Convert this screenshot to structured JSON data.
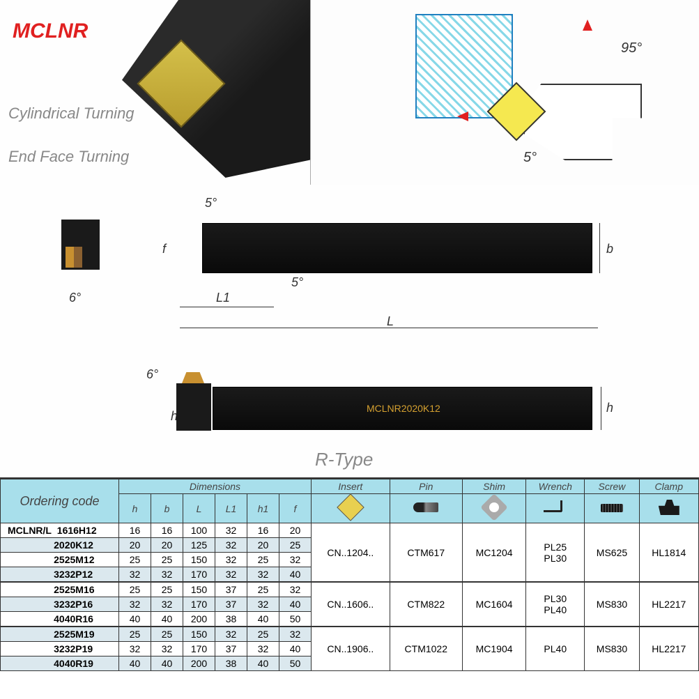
{
  "header": {
    "product_code": "MCLNR",
    "subtitle1": "Cylindrical Turning",
    "subtitle2": "End  Face Turning",
    "angle_top": "95°",
    "angle_bottom": "5°"
  },
  "diagram": {
    "angle5a": "5°",
    "angle5b": "5°",
    "angle6a": "6°",
    "angle6b": "6°",
    "label_f": "f",
    "label_L1": "L1",
    "label_L": "L",
    "label_b": "b",
    "label_h1": "h1",
    "label_h": "h",
    "bar_text": "MCLNR2020K12",
    "r_type": "R-Type"
  },
  "table": {
    "ordering_header": "Ordering code",
    "dimensions_header": "Dimensions",
    "dim_cols": [
      "h",
      "b",
      "L",
      "L1",
      "h1",
      "f"
    ],
    "part_headers": [
      "Insert",
      "Pin",
      "Shim",
      "Wrench",
      "Screw",
      "Clamp"
    ],
    "code_prefix": "MCLNR/L",
    "rows": [
      {
        "code": "1616H12",
        "dims": [
          "16",
          "16",
          "100",
          "32",
          "16",
          "20"
        ]
      },
      {
        "code": "2020K12",
        "dims": [
          "20",
          "20",
          "125",
          "32",
          "20",
          "25"
        ]
      },
      {
        "code": "2525M12",
        "dims": [
          "25",
          "25",
          "150",
          "32",
          "25",
          "32"
        ]
      },
      {
        "code": "3232P12",
        "dims": [
          "32",
          "32",
          "170",
          "32",
          "32",
          "40"
        ]
      },
      {
        "code": "2525M16",
        "dims": [
          "25",
          "25",
          "150",
          "37",
          "25",
          "32"
        ]
      },
      {
        "code": "3232P16",
        "dims": [
          "32",
          "32",
          "170",
          "37",
          "32",
          "40"
        ]
      },
      {
        "code": "4040R16",
        "dims": [
          "40",
          "40",
          "200",
          "38",
          "40",
          "50"
        ]
      },
      {
        "code": "2525M19",
        "dims": [
          "25",
          "25",
          "150",
          "32",
          "25",
          "32"
        ]
      },
      {
        "code": "3232P19",
        "dims": [
          "32",
          "32",
          "170",
          "37",
          "32",
          "40"
        ]
      },
      {
        "code": "4040R19",
        "dims": [
          "40",
          "40",
          "200",
          "38",
          "40",
          "50"
        ]
      }
    ],
    "groups": [
      {
        "span": 4,
        "insert": "CN..1204..",
        "pin": "CTM617",
        "shim": "MC1204",
        "wrench": "PL25\nPL30",
        "screw": "MS625",
        "clamp": "HL1814"
      },
      {
        "span": 3,
        "insert": "CN..1606..",
        "pin": "CTM822",
        "shim": "MC1604",
        "wrench": "PL30\nPL40",
        "screw": "MS830",
        "clamp": "HL2217"
      },
      {
        "span": 3,
        "insert": "CN..1906..",
        "pin": "CTM1022",
        "shim": "MC1904",
        "wrench": "PL40",
        "screw": "MS830",
        "clamp": "HL2217"
      }
    ],
    "colors": {
      "header_bg": "#a8dfeb",
      "row_alt_bg": "#dbe8ee",
      "border": "#333333",
      "title_color": "#e02020"
    }
  }
}
